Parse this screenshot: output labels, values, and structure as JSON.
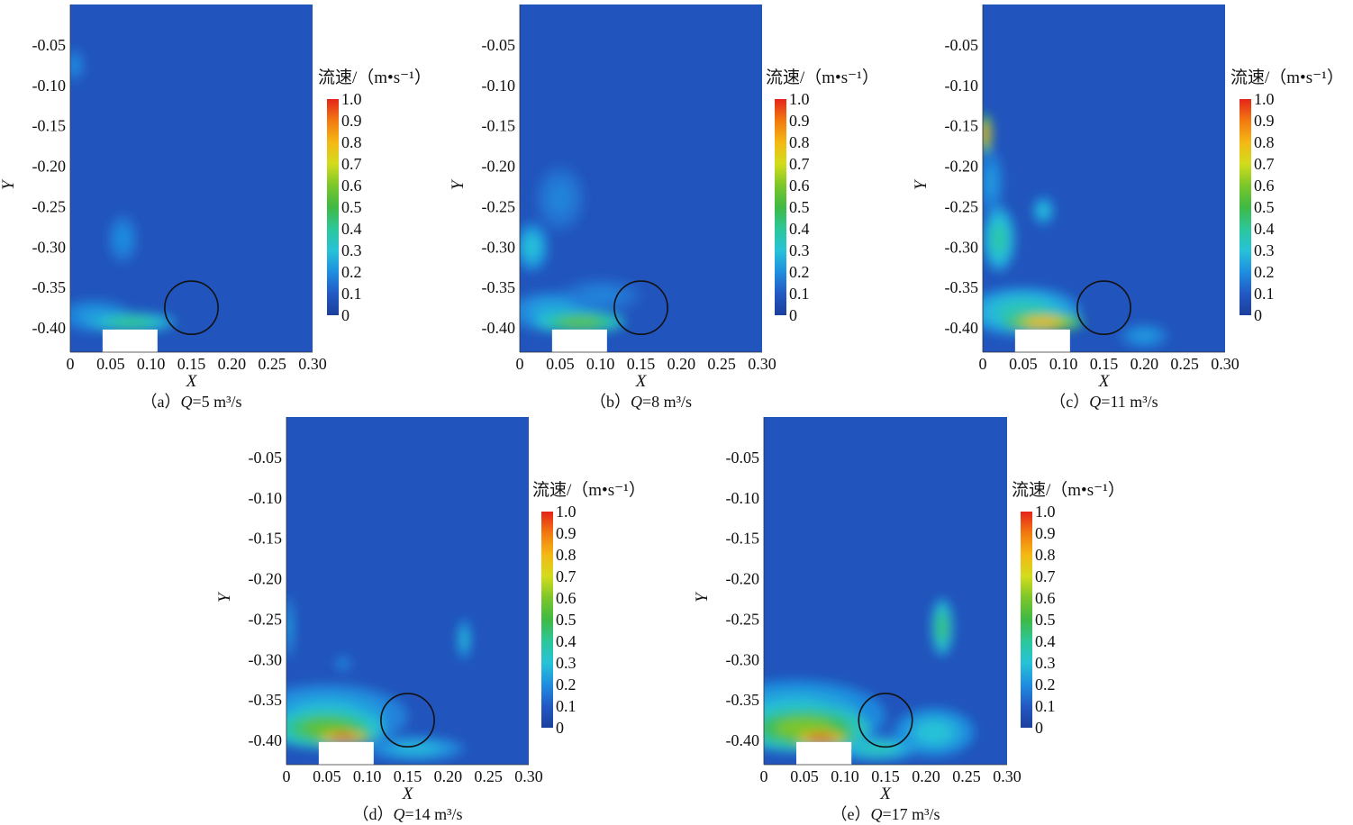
{
  "chart_data": [
    {
      "type": "heatmap",
      "caption_prefix": "（a）",
      "q_symbol": "Q",
      "caption_value": "=5 m³/s",
      "xlabel": "X",
      "ylabel": "Y",
      "xlim": [
        0,
        0.3
      ],
      "ylim": [
        -0.43,
        0.0
      ],
      "xticks": [
        "0",
        "0.05",
        "0.10",
        "0.15",
        "0.20",
        "0.25",
        "0.30"
      ],
      "yticks": [
        "-0.05",
        "-0.10",
        "-0.15",
        "-0.20",
        "-0.25",
        "-0.30",
        "-0.35",
        "-0.40"
      ],
      "colorbar_title": "流速/（m•s⁻¹）",
      "colorbar_ticks": [
        "1.0",
        "0.9",
        "0.8",
        "0.7",
        "0.6",
        "0.5",
        "0.4",
        "0.3",
        "0.2",
        "0.1",
        "0"
      ],
      "colorbar_range": [
        0,
        1.0
      ],
      "obstacle_circle": {
        "cx": 0.15,
        "cy": -0.375,
        "r": 0.033
      },
      "inlet_block": {
        "x0": 0.04,
        "x1": 0.108,
        "y0": -0.43,
        "y1": -0.402
      },
      "background_value": 0.08,
      "hotspots": [
        {
          "x": 0.075,
          "y": -0.393,
          "rx": 0.055,
          "ry": 0.012,
          "v": 0.42
        },
        {
          "x": 0.03,
          "y": -0.385,
          "rx": 0.045,
          "ry": 0.02,
          "v": 0.22
        },
        {
          "x": 0.065,
          "y": -0.29,
          "rx": 0.018,
          "ry": 0.03,
          "v": 0.2
        },
        {
          "x": 0.005,
          "y": -0.075,
          "rx": 0.012,
          "ry": 0.02,
          "v": 0.2
        }
      ]
    },
    {
      "type": "heatmap",
      "caption_prefix": "（b）",
      "q_symbol": "Q",
      "caption_value": "=8 m³/s",
      "xlabel": "X",
      "ylabel": "Y",
      "xlim": [
        0,
        0.3
      ],
      "ylim": [
        -0.43,
        0.0
      ],
      "xticks": [
        "0",
        "0.05",
        "0.10",
        "0.15",
        "0.20",
        "0.25",
        "0.30"
      ],
      "yticks": [
        "-0.05",
        "-0.10",
        "-0.15",
        "-0.20",
        "-0.25",
        "-0.30",
        "-0.35",
        "-0.40"
      ],
      "colorbar_title": "流速/（m•s⁻¹）",
      "colorbar_ticks": [
        "1.0",
        "0.9",
        "0.8",
        "0.7",
        "0.6",
        "0.5",
        "0.4",
        "0.3",
        "0.2",
        "0.1",
        "0"
      ],
      "colorbar_range": [
        0,
        1.0
      ],
      "obstacle_circle": {
        "cx": 0.15,
        "cy": -0.375,
        "r": 0.033
      },
      "inlet_block": {
        "x0": 0.04,
        "x1": 0.108,
        "y0": -0.43,
        "y1": -0.402
      },
      "background_value": 0.08,
      "hotspots": [
        {
          "x": 0.075,
          "y": -0.393,
          "rx": 0.055,
          "ry": 0.013,
          "v": 0.55
        },
        {
          "x": 0.04,
          "y": -0.38,
          "rx": 0.055,
          "ry": 0.025,
          "v": 0.25
        },
        {
          "x": 0.015,
          "y": -0.3,
          "rx": 0.02,
          "ry": 0.03,
          "v": 0.3
        },
        {
          "x": 0.05,
          "y": -0.24,
          "rx": 0.03,
          "ry": 0.04,
          "v": 0.18
        },
        {
          "x": 0.1,
          "y": -0.36,
          "rx": 0.05,
          "ry": 0.02,
          "v": 0.18
        }
      ]
    },
    {
      "type": "heatmap",
      "caption_prefix": "（c）",
      "q_symbol": "Q",
      "caption_value": "=11 m³/s",
      "xlabel": "X",
      "ylabel": "Y",
      "xlim": [
        0,
        0.3
      ],
      "ylim": [
        -0.43,
        0.0
      ],
      "xticks": [
        "0",
        "0.05",
        "0.10",
        "0.15",
        "0.20",
        "0.25",
        "0.30"
      ],
      "yticks": [
        "-0.05",
        "-0.10",
        "-0.15",
        "-0.20",
        "-0.25",
        "-0.30",
        "-0.35",
        "-0.40"
      ],
      "colorbar_title": "流速/（m•s⁻¹）",
      "colorbar_ticks": [
        "1.0",
        "0.9",
        "0.8",
        "0.7",
        "0.6",
        "0.5",
        "0.4",
        "0.3",
        "0.2",
        "0.1",
        "0"
      ],
      "colorbar_range": [
        0,
        1.0
      ],
      "obstacle_circle": {
        "cx": 0.15,
        "cy": -0.375,
        "r": 0.033
      },
      "inlet_block": {
        "x0": 0.04,
        "x1": 0.108,
        "y0": -0.43,
        "y1": -0.402
      },
      "background_value": 0.08,
      "hotspots": [
        {
          "x": 0.075,
          "y": -0.393,
          "rx": 0.05,
          "ry": 0.012,
          "v": 0.8
        },
        {
          "x": 0.05,
          "y": -0.38,
          "rx": 0.07,
          "ry": 0.03,
          "v": 0.35
        },
        {
          "x": 0.003,
          "y": -0.16,
          "rx": 0.008,
          "ry": 0.025,
          "v": 0.85
        },
        {
          "x": 0.02,
          "y": -0.29,
          "rx": 0.02,
          "ry": 0.04,
          "v": 0.38
        },
        {
          "x": 0.075,
          "y": -0.255,
          "rx": 0.013,
          "ry": 0.017,
          "v": 0.3
        },
        {
          "x": 0.01,
          "y": -0.22,
          "rx": 0.015,
          "ry": 0.04,
          "v": 0.22
        },
        {
          "x": 0.2,
          "y": -0.41,
          "rx": 0.03,
          "ry": 0.015,
          "v": 0.22
        }
      ]
    },
    {
      "type": "heatmap",
      "caption_prefix": "（d）",
      "q_symbol": "Q",
      "caption_value": "=14 m³/s",
      "xlabel": "X",
      "ylabel": "Y",
      "xlim": [
        0,
        0.3
      ],
      "ylim": [
        -0.43,
        0.0
      ],
      "xticks": [
        "0",
        "0.05",
        "0.10",
        "0.15",
        "0.20",
        "0.25",
        "0.30"
      ],
      "yticks": [
        "-0.05",
        "-0.10",
        "-0.15",
        "-0.20",
        "-0.25",
        "-0.30",
        "-0.35",
        "-0.40"
      ],
      "colorbar_title": "流速/（m•s⁻¹）",
      "colorbar_ticks": [
        "1.0",
        "0.9",
        "0.8",
        "0.7",
        "0.6",
        "0.5",
        "0.4",
        "0.3",
        "0.2",
        "0.1",
        "0"
      ],
      "colorbar_range": [
        0,
        1.0
      ],
      "obstacle_circle": {
        "cx": 0.15,
        "cy": -0.375,
        "r": 0.033
      },
      "inlet_block": {
        "x0": 0.04,
        "x1": 0.108,
        "y0": -0.43,
        "y1": -0.402
      },
      "background_value": 0.08,
      "hotspots": [
        {
          "x": 0.07,
          "y": -0.396,
          "rx": 0.038,
          "ry": 0.008,
          "v": 1.0
        },
        {
          "x": 0.05,
          "y": -0.385,
          "rx": 0.07,
          "ry": 0.025,
          "v": 0.55
        },
        {
          "x": 0.05,
          "y": -0.37,
          "rx": 0.1,
          "ry": 0.04,
          "v": 0.28
        },
        {
          "x": 0.22,
          "y": -0.275,
          "rx": 0.008,
          "ry": 0.025,
          "v": 0.3
        },
        {
          "x": 0.07,
          "y": -0.305,
          "rx": 0.01,
          "ry": 0.01,
          "v": 0.2
        },
        {
          "x": 0.003,
          "y": -0.26,
          "rx": 0.006,
          "ry": 0.04,
          "v": 0.25
        },
        {
          "x": 0.16,
          "y": -0.41,
          "rx": 0.06,
          "ry": 0.015,
          "v": 0.28
        }
      ]
    },
    {
      "type": "heatmap",
      "caption_prefix": "（e）",
      "q_symbol": "Q",
      "caption_value": "=17 m³/s",
      "xlabel": "X",
      "ylabel": "Y",
      "xlim": [
        0,
        0.3
      ],
      "ylim": [
        -0.43,
        0.0
      ],
      "xticks": [
        "0",
        "0.05",
        "0.10",
        "0.15",
        "0.20",
        "0.25",
        "0.30"
      ],
      "yticks": [
        "-0.05",
        "-0.10",
        "-0.15",
        "-0.20",
        "-0.25",
        "-0.30",
        "-0.35",
        "-0.40"
      ],
      "colorbar_title": "流速/（m•s⁻¹）",
      "colorbar_ticks": [
        "1.0",
        "0.9",
        "0.8",
        "0.7",
        "0.6",
        "0.5",
        "0.4",
        "0.3",
        "0.2",
        "0.1",
        "0"
      ],
      "colorbar_range": [
        0,
        1.0
      ],
      "obstacle_circle": {
        "cx": 0.15,
        "cy": -0.375,
        "r": 0.033
      },
      "inlet_block": {
        "x0": 0.04,
        "x1": 0.108,
        "y0": -0.43,
        "y1": -0.402
      },
      "background_value": 0.08,
      "hotspots": [
        {
          "x": 0.07,
          "y": -0.397,
          "rx": 0.04,
          "ry": 0.009,
          "v": 1.0
        },
        {
          "x": 0.05,
          "y": -0.385,
          "rx": 0.08,
          "ry": 0.028,
          "v": 0.6
        },
        {
          "x": 0.04,
          "y": -0.37,
          "rx": 0.11,
          "ry": 0.045,
          "v": 0.3
        },
        {
          "x": 0.22,
          "y": -0.26,
          "rx": 0.013,
          "ry": 0.035,
          "v": 0.45
        },
        {
          "x": 0.21,
          "y": -0.39,
          "rx": 0.05,
          "ry": 0.03,
          "v": 0.3
        },
        {
          "x": 0.14,
          "y": -0.41,
          "rx": 0.05,
          "ry": 0.015,
          "v": 0.35
        }
      ]
    }
  ]
}
